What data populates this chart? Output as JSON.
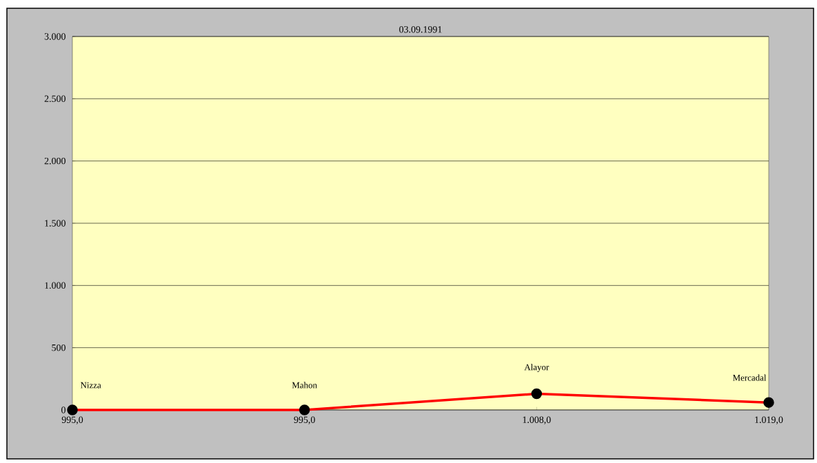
{
  "chart_data": {
    "type": "line",
    "title": "03.09.1991",
    "categories": [
      "995,0",
      "995,0",
      "1.008,0",
      "1.019,0"
    ],
    "series": [
      {
        "color": "#ff0000",
        "values": [
          0,
          0,
          130,
          60
        ]
      }
    ],
    "ylim": [
      0,
      3000
    ],
    "yticks": [
      {
        "value": 0,
        "label": "0"
      },
      {
        "value": 500,
        "label": "500"
      },
      {
        "value": 1000,
        "label": "1.000"
      },
      {
        "value": 1500,
        "label": "1.500"
      },
      {
        "value": 2000,
        "label": "2.000"
      },
      {
        "value": 2500,
        "label": "2.500"
      },
      {
        "value": 3000,
        "label": "3.000"
      }
    ],
    "grid": "y",
    "marker": "circle",
    "line_style": "solid",
    "annotations": [
      {
        "text": "Nizza",
        "x": "995,0",
        "y": 0
      },
      "Mahon",
      {
        "text": "Alayor",
        "x": "1.008,0",
        "y": 130
      },
      {
        "text": "Mercadal",
        "x": "1.019,0",
        "y": 60
      }
    ]
  }
}
